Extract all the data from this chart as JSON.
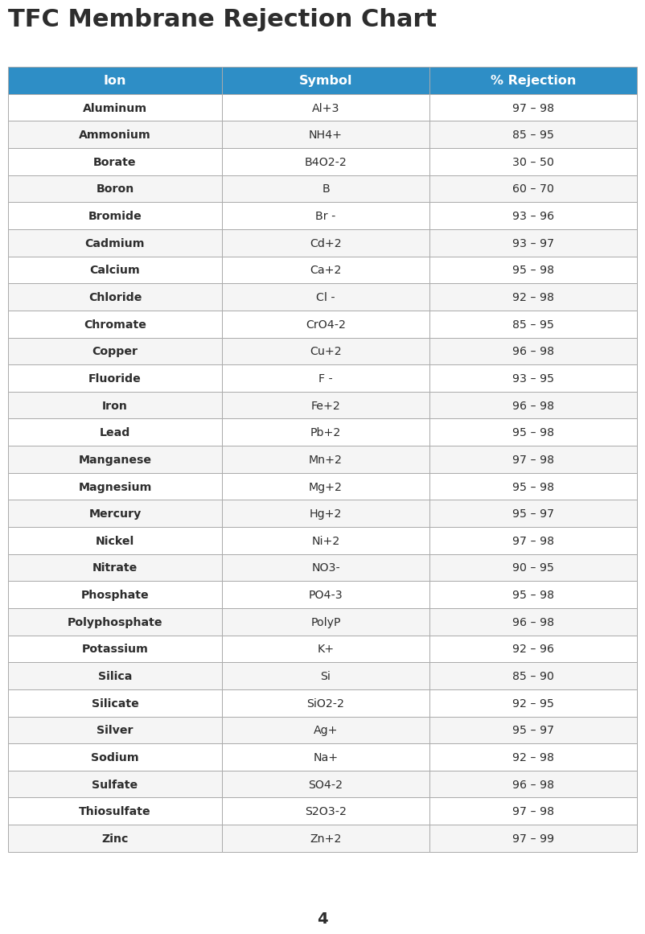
{
  "title": "TFC Membrane Rejection Chart",
  "header": [
    "Ion",
    "Symbol",
    "% Rejection"
  ],
  "rows": [
    [
      "Aluminum",
      "Al+3",
      "97 – 98"
    ],
    [
      "Ammonium",
      "NH4+",
      "85 – 95"
    ],
    [
      "Borate",
      "B4O2-2",
      "30 – 50"
    ],
    [
      "Boron",
      "B",
      "60 – 70"
    ],
    [
      "Bromide",
      "Br -",
      "93 – 96"
    ],
    [
      "Cadmium",
      "Cd+2",
      "93 – 97"
    ],
    [
      "Calcium",
      "Ca+2",
      "95 – 98"
    ],
    [
      "Chloride",
      "Cl -",
      "92 – 98"
    ],
    [
      "Chromate",
      "CrO4-2",
      "85 – 95"
    ],
    [
      "Copper",
      "Cu+2",
      "96 – 98"
    ],
    [
      "Fluoride",
      "F -",
      "93 – 95"
    ],
    [
      "Iron",
      "Fe+2",
      "96 – 98"
    ],
    [
      "Lead",
      "Pb+2",
      "95 – 98"
    ],
    [
      "Manganese",
      "Mn+2",
      "97 – 98"
    ],
    [
      "Magnesium",
      "Mg+2",
      "95 – 98"
    ],
    [
      "Mercury",
      "Hg+2",
      "95 – 97"
    ],
    [
      "Nickel",
      "Ni+2",
      "97 – 98"
    ],
    [
      "Nitrate",
      "NO3-",
      "90 – 95"
    ],
    [
      "Phosphate",
      "PO4-3",
      "95 – 98"
    ],
    [
      "Polyphosphate",
      "PolyP",
      "96 – 98"
    ],
    [
      "Potassium",
      "K+",
      "92 – 96"
    ],
    [
      "Silica",
      "Si",
      "85 – 90"
    ],
    [
      "Silicate",
      "SiO2-2",
      "92 – 95"
    ],
    [
      "Silver",
      "Ag+",
      "95 – 97"
    ],
    [
      "Sodium",
      "Na+",
      "92 – 98"
    ],
    [
      "Sulfate",
      "SO4-2",
      "96 – 98"
    ],
    [
      "Thiosulfate",
      "S2O3-2",
      "97 – 98"
    ],
    [
      "Zinc",
      "Zn+2",
      "97 – 99"
    ]
  ],
  "header_bg": "#2E8EC6",
  "header_text_color": "#ffffff",
  "row_bg_even": "#ffffff",
  "row_bg_odd": "#f5f5f5",
  "border_color": "#aaaaaa",
  "title_color": "#2d2d2d",
  "cell_text_color": "#2d2d2d",
  "page_number": "4",
  "page_bg": "#ffffff"
}
